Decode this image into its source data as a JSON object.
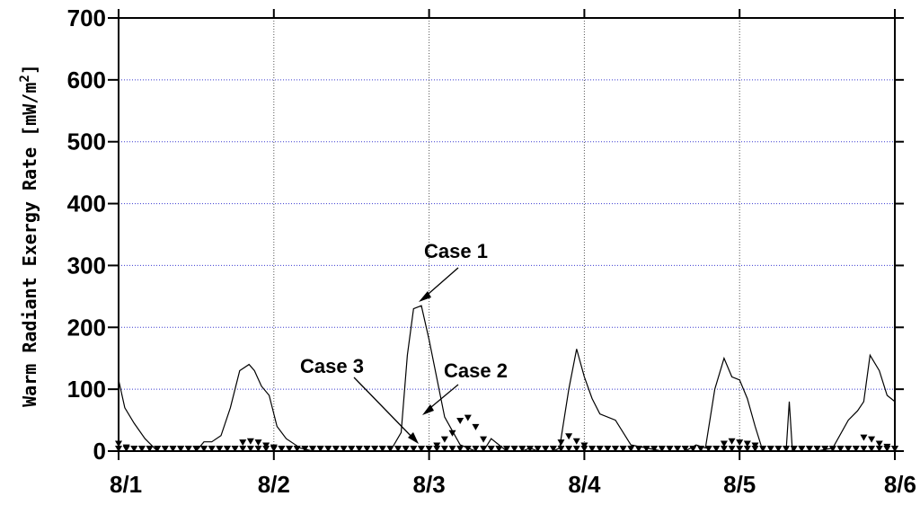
{
  "chart_data": {
    "type": "line",
    "title": "",
    "xlabel": "",
    "ylabel": "Warm Radiant Exergy Rate [mW/m²]",
    "ylabel_main": "Warm Radiant Exergy Rate [mW/m",
    "ylabel_sup": "2",
    "ylabel_end": "]",
    "ylim": [
      0,
      700
    ],
    "xlim": [
      0,
      5
    ],
    "y_ticks": [
      0,
      100,
      200,
      300,
      400,
      500,
      600,
      700
    ],
    "x_tick_values": [
      0,
      1,
      2,
      3,
      4,
      5
    ],
    "x_tick_labels": [
      "8/1",
      "8/2",
      "8/3",
      "8/4",
      "8/5",
      "8/6"
    ],
    "grid": "dotted",
    "annotations": [
      {
        "text": "Case 1",
        "series": "Case 1"
      },
      {
        "text": "Case 2",
        "series": "Case 2"
      },
      {
        "text": "Case 3",
        "series": "Case 3"
      }
    ],
    "series": [
      {
        "name": "Case 1",
        "style": "thin-line",
        "x": [
          0,
          0.04,
          0.1,
          0.17,
          0.25,
          0.33,
          0.42,
          0.5,
          0.55,
          0.6,
          0.66,
          0.72,
          0.78,
          0.84,
          0.875,
          0.92,
          0.97,
          1.02,
          1.08,
          1.17,
          1.25,
          1.5,
          1.75,
          1.82,
          1.86,
          1.9,
          1.95,
          2.0,
          2.1,
          2.2,
          2.3,
          2.35,
          2.4,
          2.5,
          2.6,
          2.65,
          2.7,
          2.8,
          2.84,
          2.9,
          2.95,
          3.0,
          3.05,
          3.1,
          3.2,
          3.3,
          3.5,
          3.6,
          3.65,
          3.72,
          3.78,
          3.84,
          3.9,
          3.95,
          4.0,
          4.05,
          4.1,
          4.15,
          4.2,
          4.3,
          4.32,
          4.34,
          4.37,
          4.4,
          4.5,
          4.6,
          4.7,
          4.76,
          4.8,
          4.84,
          4.9,
          4.95,
          5.0
        ],
        "values": [
          115,
          70,
          45,
          20,
          0,
          0,
          0,
          0,
          15,
          15,
          25,
          70,
          130,
          140,
          130,
          105,
          90,
          40,
          20,
          5,
          0,
          0,
          0,
          30,
          155,
          230,
          235,
          180,
          55,
          10,
          0,
          0,
          20,
          0,
          0,
          5,
          0,
          0,
          5,
          100,
          165,
          120,
          85,
          60,
          50,
          10,
          0,
          0,
          0,
          10,
          5,
          100,
          150,
          120,
          115,
          85,
          40,
          0,
          0,
          0,
          80,
          0,
          0,
          0,
          0,
          5,
          50,
          65,
          80,
          155,
          130,
          90,
          80
        ]
      },
      {
        "name": "Case 2",
        "style": "triangles",
        "x": [
          0,
          0.05,
          0.1,
          0.15,
          0.2,
          0.25,
          0.3,
          0.35,
          0.4,
          0.45,
          0.5,
          0.55,
          0.6,
          0.65,
          0.7,
          0.75,
          0.8,
          0.85,
          0.9,
          0.95,
          1.0,
          1.05,
          1.1,
          1.15,
          1.2,
          1.25,
          1.3,
          1.35,
          1.4,
          1.45,
          1.5,
          1.55,
          1.6,
          1.65,
          1.7,
          1.75,
          1.8,
          1.85,
          1.9,
          1.95,
          2.0,
          2.05,
          2.1,
          2.15,
          2.2,
          2.25,
          2.3,
          2.35,
          2.4,
          2.45,
          2.5,
          2.55,
          2.6,
          2.65,
          2.7,
          2.75,
          2.8,
          2.85,
          2.9,
          2.95,
          3.0,
          3.05,
          3.1,
          3.15,
          3.2,
          3.25,
          3.3,
          3.35,
          3.4,
          3.45,
          3.5,
          3.55,
          3.6,
          3.65,
          3.7,
          3.75,
          3.8,
          3.85,
          3.9,
          3.95,
          4.0,
          4.05,
          4.1,
          4.15,
          4.2,
          4.25,
          4.3,
          4.35,
          4.4,
          4.45,
          4.5,
          4.55,
          4.6,
          4.65,
          4.7,
          4.75,
          4.8,
          4.85,
          4.9,
          4.95,
          5.0
        ],
        "values": [
          0,
          0,
          0,
          0,
          0,
          0,
          0,
          0,
          0,
          0,
          0,
          0,
          0,
          0,
          0,
          0,
          0,
          0,
          0,
          0,
          0,
          0,
          0,
          0,
          0,
          0,
          0,
          0,
          0,
          0,
          0,
          0,
          0,
          0,
          0,
          0,
          0,
          0,
          0,
          0,
          0,
          5,
          15,
          25,
          45,
          50,
          35,
          15,
          0,
          0,
          0,
          0,
          0,
          0,
          0,
          0,
          0,
          0,
          0,
          0,
          0,
          0,
          0,
          0,
          0,
          0,
          0,
          0,
          0,
          0,
          0,
          0,
          0,
          0,
          0,
          0,
          0,
          0,
          0,
          0,
          0,
          0,
          0,
          0,
          0,
          0,
          0,
          0,
          0,
          0,
          0,
          0,
          0,
          0,
          0,
          0,
          0,
          0,
          0,
          0,
          0
        ]
      },
      {
        "name": "Case 3",
        "style": "triangles",
        "x": [
          0,
          0.05,
          0.1,
          0.15,
          0.2,
          0.25,
          0.3,
          0.35,
          0.4,
          0.45,
          0.5,
          0.55,
          0.6,
          0.65,
          0.7,
          0.75,
          0.8,
          0.85,
          0.9,
          0.95,
          1.0,
          1.05,
          1.1,
          1.15,
          1.2,
          1.25,
          1.3,
          1.35,
          1.4,
          1.45,
          1.5,
          1.55,
          1.6,
          1.65,
          1.7,
          1.75,
          1.8,
          1.85,
          1.9,
          1.95,
          2.0,
          2.05,
          2.1,
          2.15,
          2.2,
          2.25,
          2.3,
          2.35,
          2.4,
          2.45,
          2.5,
          2.55,
          2.6,
          2.65,
          2.7,
          2.75,
          2.8,
          2.85,
          2.9,
          2.95,
          3.0,
          3.05,
          3.1,
          3.15,
          3.2,
          3.25,
          3.3,
          3.35,
          3.4,
          3.45,
          3.5,
          3.55,
          3.6,
          3.65,
          3.7,
          3.75,
          3.8,
          3.85,
          3.9,
          3.95,
          4.0,
          4.05,
          4.1,
          4.15,
          4.2,
          4.25,
          4.3,
          4.35,
          4.4,
          4.45,
          4.5,
          4.55,
          4.6,
          4.65,
          4.7,
          4.75,
          4.8,
          4.85,
          4.9,
          4.95,
          5.0
        ],
        "values": [
          8,
          2,
          0,
          0,
          0,
          0,
          0,
          0,
          0,
          0,
          0,
          0,
          0,
          0,
          0,
          0,
          10,
          12,
          10,
          5,
          2,
          0,
          0,
          0,
          0,
          0,
          0,
          0,
          0,
          0,
          0,
          0,
          0,
          0,
          0,
          0,
          0,
          0,
          0,
          0,
          0,
          0,
          0,
          0,
          0,
          0,
          0,
          0,
          0,
          0,
          0,
          0,
          0,
          0,
          0,
          0,
          0,
          10,
          20,
          12,
          5,
          0,
          0,
          0,
          0,
          0,
          0,
          0,
          0,
          0,
          0,
          0,
          0,
          0,
          0,
          0,
          0,
          0,
          8,
          12,
          10,
          8,
          5,
          0,
          0,
          0,
          0,
          0,
          0,
          0,
          0,
          0,
          0,
          0,
          0,
          0,
          18,
          15,
          8,
          3,
          0
        ]
      }
    ]
  }
}
